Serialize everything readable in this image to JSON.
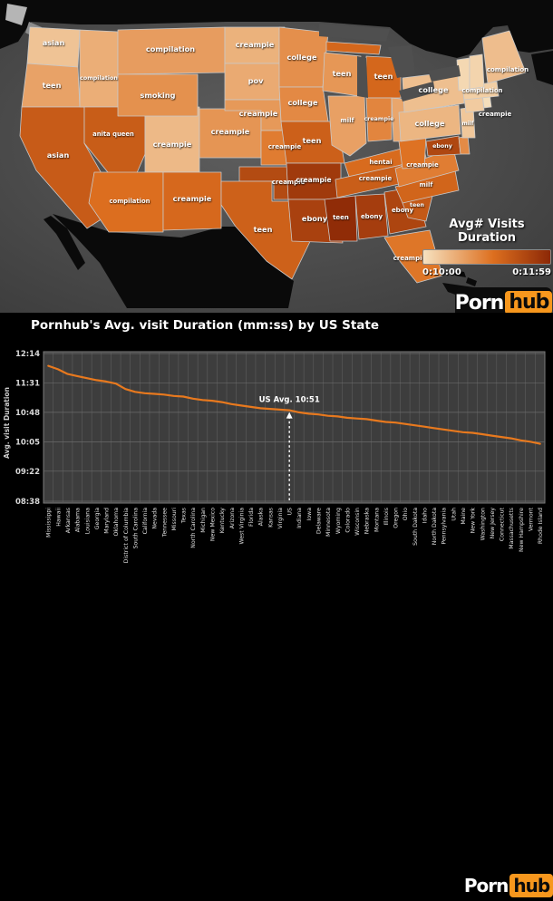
{
  "map": {
    "legend": {
      "title": "Avg# Visits Duration",
      "min_label": "0:10:00",
      "max_label": "0:11:59"
    },
    "colors": {
      "scale_light": "#f6e2c0",
      "scale_mid": "#dd6f1f",
      "scale_dark": "#8c2806",
      "water": "#535353",
      "outside_land": "#0a0a0a",
      "state_border": "#c9c9c9"
    },
    "state_terms": {
      "washington": "asian",
      "oregon": "teen",
      "california": "asian",
      "nevada": "anita queen",
      "idaho": "compilation",
      "montana": "compilation",
      "wyoming": "smoking",
      "utah": "creampie",
      "colorado": "creampie",
      "arizona": "compilation",
      "new mexico": "creampie",
      "north dakota": "creampie",
      "south dakota": "pov",
      "nebraska": "creampie",
      "kansas": "creampie",
      "oklahoma": "creampie",
      "texas": "teen",
      "minnesota": "college",
      "iowa": "college",
      "missouri": "teen",
      "arkansas": "creampie",
      "louisiana": "ebony",
      "wisconsin": "teen",
      "illinois": "milf",
      "michigan": "teen",
      "indiana": "creampie",
      "kentucky": "hentai",
      "tennessee": "creampie",
      "mississippi": "teen",
      "alabama": "ebony",
      "georgia": "ebony",
      "south carolina": "teen",
      "north carolina": "milf",
      "florida": "creampie",
      "virginia": "creampie",
      "maryland": "ebony",
      "pennsylvania": "college",
      "new york": "college",
      "new jersey": "milf",
      "massachusetts": "creampie",
      "new hampshire": "compilation",
      "maine": "compilation"
    }
  },
  "logo": {
    "part1": "Porn",
    "part2": "hub",
    "orange": "#f7971d"
  },
  "chart_title": "Pornhub's Avg. visit Duration (mm:ss) by US State",
  "chart_data": {
    "type": "line",
    "title": "Pornhub's Avg. visit Duration (mm:ss) by US State",
    "ylabel": "Avg. visit Duration",
    "y_ticks": [
      "12:14",
      "11:31",
      "10:48",
      "10:05",
      "09:22",
      "08:38"
    ],
    "ylim": [
      "08:38",
      "12:14"
    ],
    "grid": true,
    "line_color": "#e8791e",
    "annotation": {
      "text": "US Avg. 10:51",
      "x_category": "US"
    },
    "categories": [
      "Mississippi",
      "Hawaii",
      "Arkansas",
      "Alabama",
      "Louisiana",
      "Georgia",
      "Maryland",
      "Oklahoma",
      "District of Columbia",
      "South Carolina",
      "California",
      "Nevada",
      "Tennessee",
      "Missouri",
      "Texas",
      "North Carolina",
      "Michigan",
      "New Mexico",
      "Kentucky",
      "Arizona",
      "West Virginia",
      "Florida",
      "Alaska",
      "Kansas",
      "Virginia",
      "US",
      "Indiana",
      "Iowa",
      "Delaware",
      "Minnesota",
      "Wyoming",
      "Colorado",
      "Wisconsin",
      "Nebraska",
      "Montana",
      "Illinois",
      "Oregon",
      "Ohio",
      "South Dakota",
      "Idaho",
      "North Dakota",
      "Pennsylvania",
      "Utah",
      "Maine",
      "New York",
      "Washington",
      "New Jersey",
      "Connecticut",
      "Massachusetts",
      "New Hampshire",
      "Vermont",
      "Rhode Island"
    ],
    "values_mmss": [
      "11:56",
      "11:51",
      "11:44",
      "11:41",
      "11:38",
      "11:35",
      "11:33",
      "11:30",
      "11:22",
      "11:18",
      "11:16",
      "11:15",
      "11:14",
      "11:12",
      "11:11",
      "11:08",
      "11:06",
      "11:05",
      "11:03",
      "11:00",
      "10:58",
      "10:56",
      "10:54",
      "10:53",
      "10:52",
      "10:51",
      "10:48",
      "10:46",
      "10:45",
      "10:43",
      "10:42",
      "10:40",
      "10:39",
      "10:38",
      "10:36",
      "10:34",
      "10:33",
      "10:31",
      "10:29",
      "10:27",
      "10:25",
      "10:23",
      "10:21",
      "10:19",
      "10:18",
      "10:16",
      "10:14",
      "10:12",
      "10:10",
      "10:07",
      "10:05",
      "10:02"
    ]
  }
}
